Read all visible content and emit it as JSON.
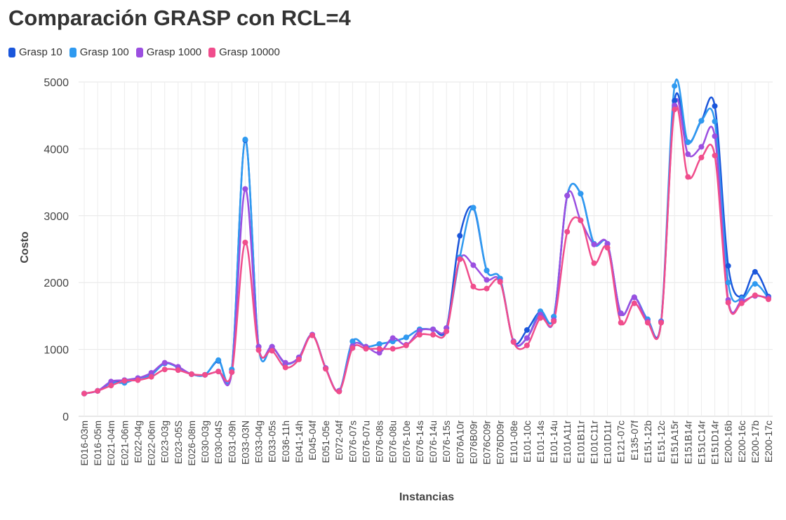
{
  "chart_data": {
    "type": "line",
    "title": "Comparación GRASP con RCL=4",
    "xlabel": "Instancias",
    "ylabel": "Costo",
    "ylim": [
      0,
      5000
    ],
    "yticks": [
      0,
      1000,
      2000,
      3000,
      4000,
      5000
    ],
    "grid": true,
    "legend_position": "top-left",
    "categories": [
      "E016-03m",
      "E016-05m",
      "E021-04m",
      "E021-06m",
      "E022-04g",
      "E022-06m",
      "E023-03g",
      "E023-05S",
      "E026-08m",
      "E030-03g",
      "E030-04S",
      "E031-09h",
      "E033-03N",
      "E033-04g",
      "E033-05s",
      "E036-11h",
      "E041-14h",
      "E045-04f",
      "E051-05e",
      "E072-04f",
      "E076-07s",
      "E076-07u",
      "E076-08s",
      "E076-08u",
      "E076-10e",
      "E076-14s",
      "E076-14u",
      "E076-15s",
      "E076A10r",
      "E076B09r",
      "E076C09r",
      "E076D09r",
      "E101-08e",
      "E101-10c",
      "E101-14s",
      "E101-14u",
      "E101A11r",
      "E101B11r",
      "E101C11r",
      "E101D11r",
      "E121-07c",
      "E135-07f",
      "E151-12b",
      "E151-12c",
      "E151A15r",
      "E151B14r",
      "E151C14r",
      "E151D14r",
      "E200-16b",
      "E200-16c",
      "E200-17b",
      "E200-17c"
    ],
    "series": [
      {
        "name": "Grasp 10",
        "color": "#1a56db",
        "values": [
          340,
          380,
          500,
          540,
          570,
          620,
          790,
          730,
          630,
          620,
          830,
          700,
          4130,
          1040,
          1040,
          790,
          880,
          1220,
          720,
          380,
          1120,
          1040,
          1080,
          1120,
          1180,
          1300,
          1300,
          1320,
          2700,
          3120,
          2180,
          2060,
          1120,
          1290,
          1570,
          1490,
          3300,
          3330,
          2580,
          2580,
          1540,
          1780,
          1450,
          1420,
          4720,
          4100,
          4420,
          4640,
          2250,
          1780,
          2160,
          1790
        ]
      },
      {
        "name": "Grasp 100",
        "color": "#2f9af0",
        "values": [
          340,
          380,
          500,
          500,
          570,
          620,
          790,
          730,
          630,
          620,
          840,
          700,
          4140,
          1040,
          1040,
          790,
          880,
          1220,
          720,
          380,
          1120,
          1040,
          1080,
          1120,
          1180,
          1300,
          1300,
          1320,
          2380,
          3120,
          2180,
          2060,
          1120,
          1170,
          1570,
          1490,
          3300,
          3330,
          2580,
          2580,
          1540,
          1780,
          1450,
          1420,
          4940,
          4100,
          4420,
          4410,
          2000,
          1760,
          1980,
          1770
        ]
      },
      {
        "name": "Grasp 1000",
        "color": "#9b4fe0",
        "values": [
          340,
          380,
          520,
          540,
          570,
          650,
          800,
          740,
          630,
          620,
          670,
          660,
          3400,
          1040,
          1040,
          800,
          880,
          1220,
          720,
          380,
          1050,
          1040,
          950,
          1170,
          1070,
          1280,
          1300,
          1320,
          2350,
          2260,
          2040,
          2020,
          1120,
          1170,
          1520,
          1440,
          3300,
          2930,
          2570,
          2580,
          1540,
          1780,
          1420,
          1410,
          4650,
          3920,
          4030,
          4190,
          1740,
          1720,
          1800,
          1770
        ]
      },
      {
        "name": "Grasp 10000",
        "color": "#f04d8c",
        "values": [
          340,
          380,
          460,
          530,
          540,
          590,
          700,
          690,
          630,
          620,
          670,
          660,
          2600,
          990,
          980,
          730,
          850,
          1210,
          710,
          370,
          1020,
          1010,
          1010,
          1010,
          1060,
          1220,
          1220,
          1270,
          2350,
          1940,
          1910,
          2010,
          1110,
          1060,
          1470,
          1420,
          2760,
          2930,
          2290,
          2520,
          1400,
          1690,
          1400,
          1400,
          4590,
          3580,
          3870,
          3900,
          1700,
          1690,
          1810,
          1750
        ]
      }
    ]
  }
}
